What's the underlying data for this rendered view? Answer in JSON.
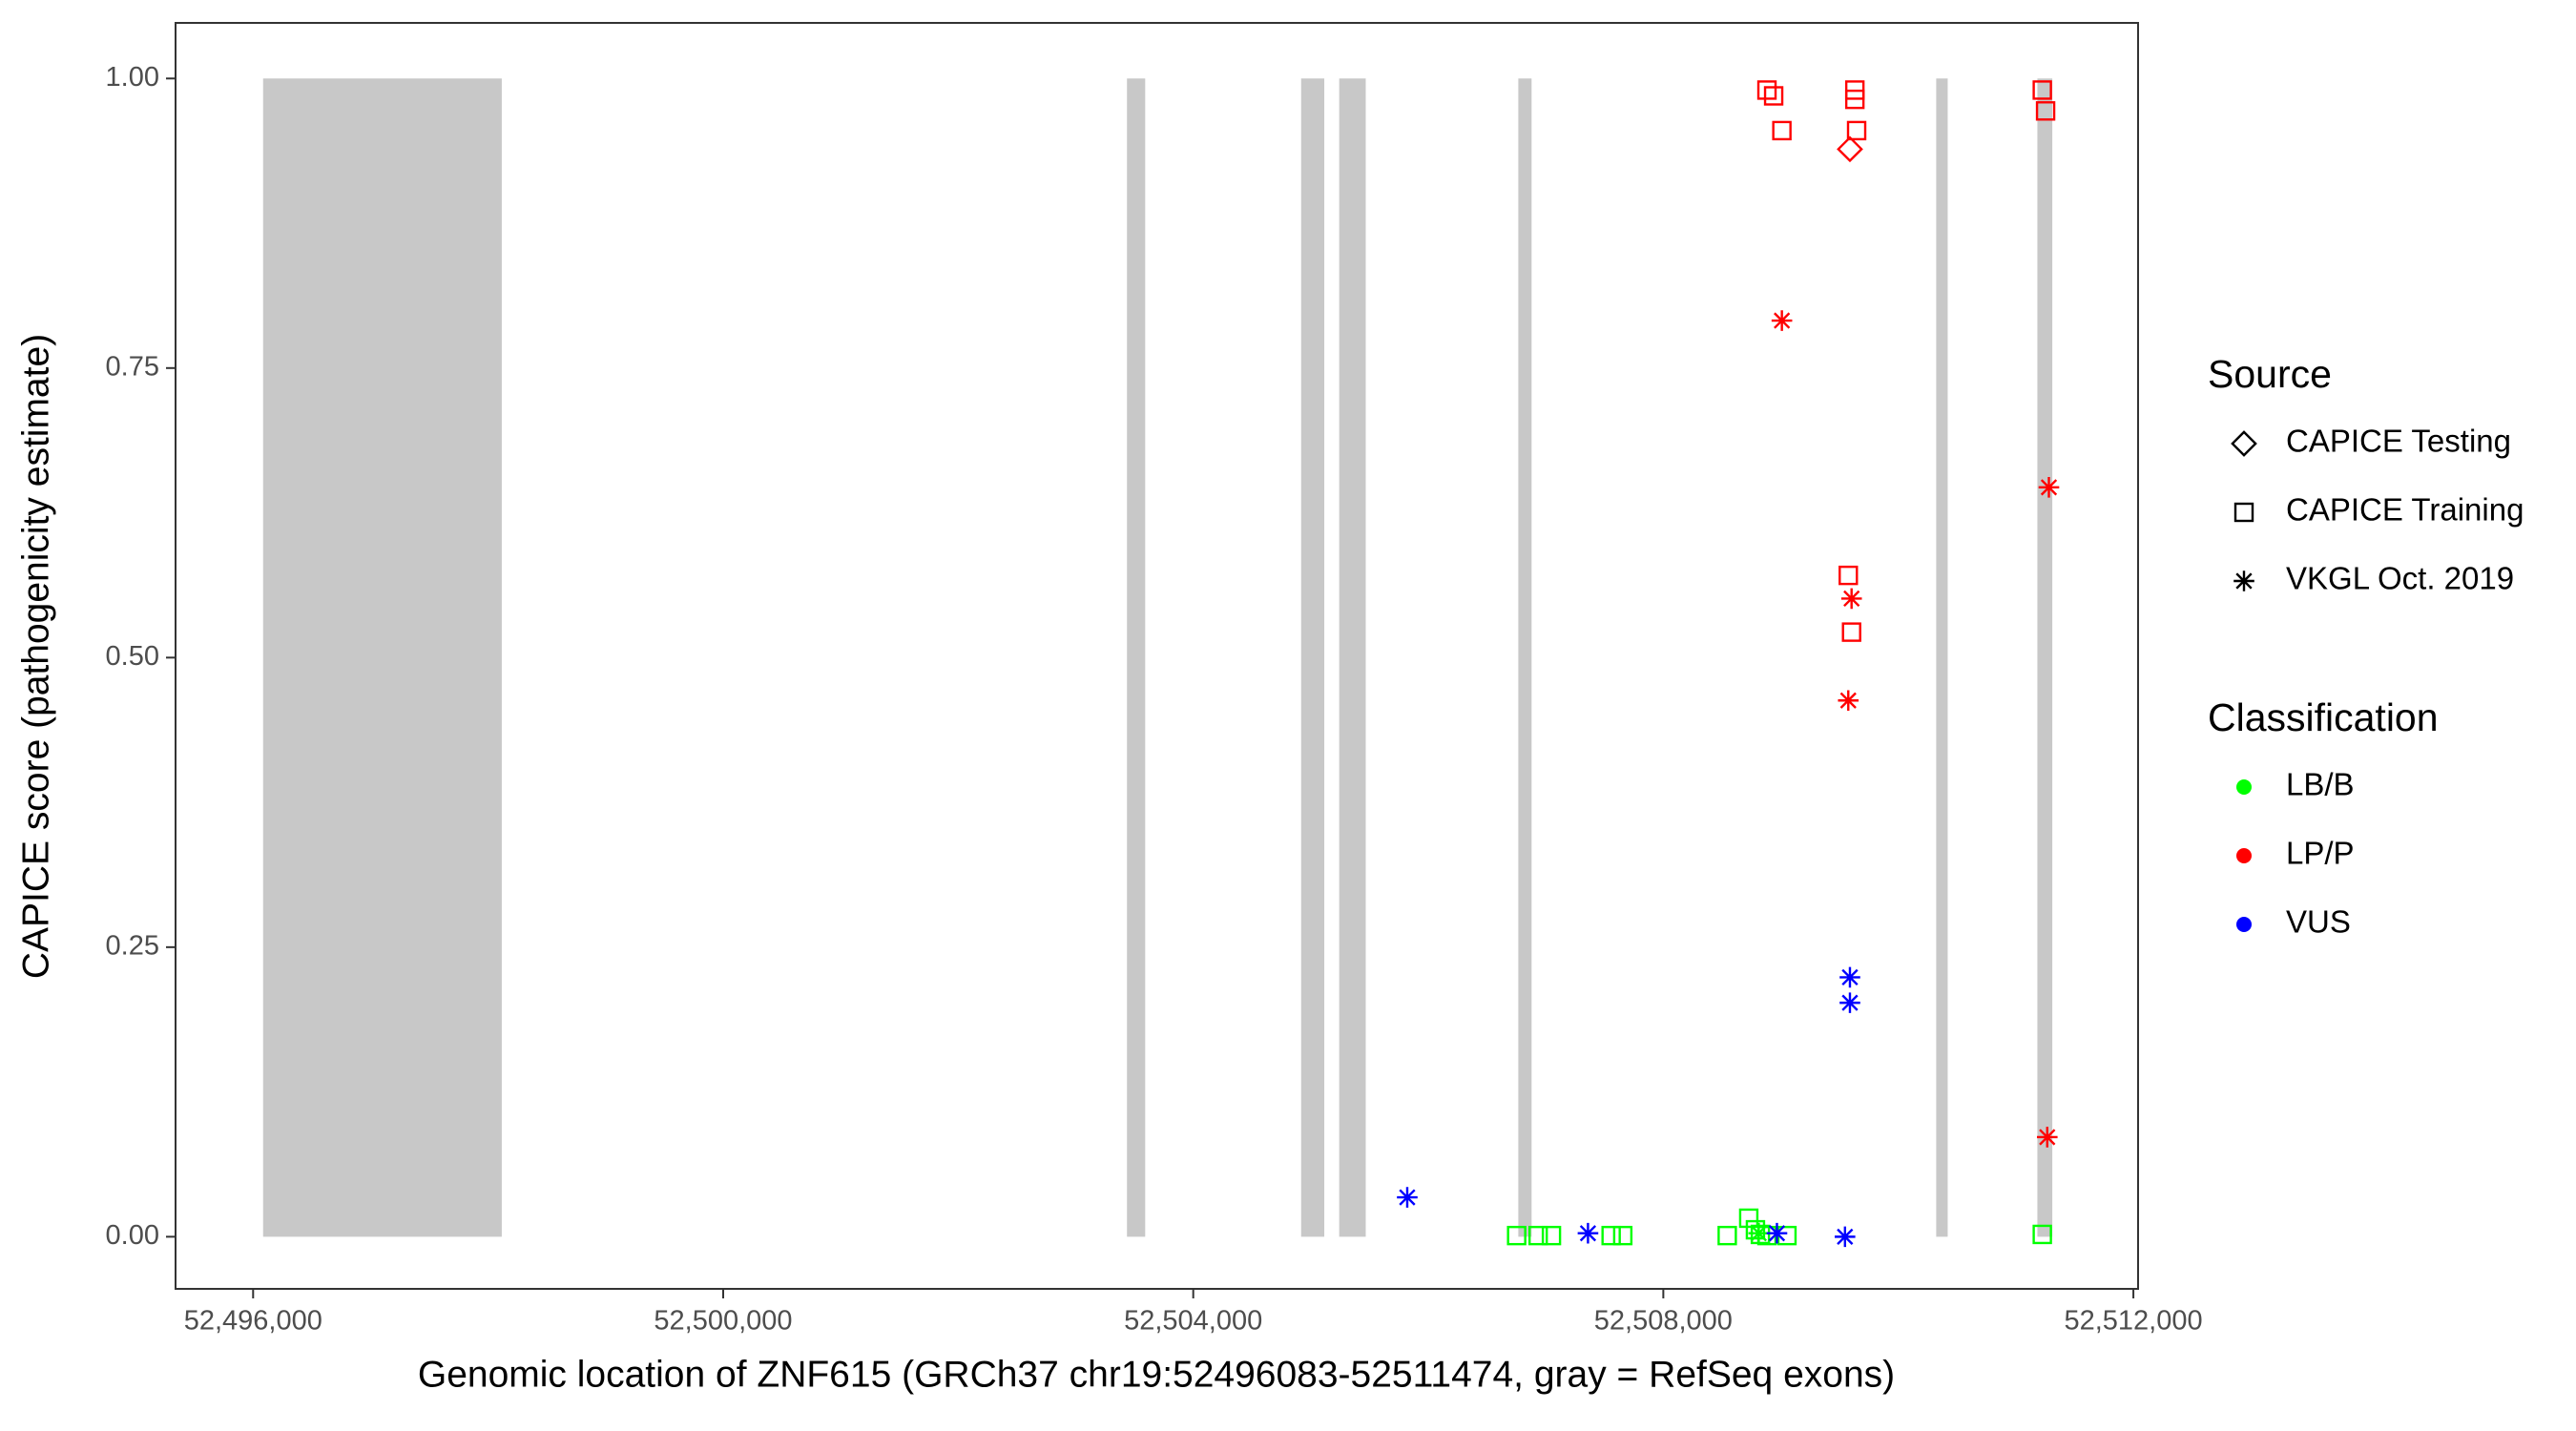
{
  "chart_data": {
    "type": "scatter",
    "x_label": "Genomic location of ZNF615 (GRCh37 chr19:52496083-52511474, gray = RefSeq exons)",
    "y_label": "CAPICE score (pathogenicity estimate)",
    "xlim": [
      52495340,
      52512040
    ],
    "ylim": [
      -0.045,
      1.048
    ],
    "xticks": [
      {
        "value": 52496000,
        "label": "52,496,000"
      },
      {
        "value": 52500000,
        "label": "52,500,000"
      },
      {
        "value": 52504000,
        "label": "52,504,000"
      },
      {
        "value": 52508000,
        "label": "52,508,000"
      },
      {
        "value": 52512000,
        "label": "52,512,000"
      }
    ],
    "yticks": [
      {
        "value": 0,
        "label": "0.00"
      },
      {
        "value": 0.25,
        "label": "0.25"
      },
      {
        "value": 0.5,
        "label": "0.50"
      },
      {
        "value": 0.75,
        "label": "0.75"
      },
      {
        "value": 1,
        "label": "1.00"
      }
    ],
    "grid": false,
    "exon_color": "#c8c8c8",
    "exon_y": [
      0,
      1
    ],
    "exons": [
      [
        52496085,
        52498116
      ],
      [
        52503436,
        52503591
      ],
      [
        52504918,
        52505115
      ],
      [
        52505242,
        52505468
      ],
      [
        52506766,
        52506879
      ],
      [
        52510322,
        52510420
      ],
      [
        52511183,
        52511310
      ]
    ],
    "legends": [
      {
        "title": "Source",
        "items": [
          {
            "name": "CAPICE Testing",
            "shape": "diamond"
          },
          {
            "name": "CAPICE Training",
            "shape": "square"
          },
          {
            "name": "VKGL Oct. 2019",
            "shape": "asterisk"
          }
        ]
      },
      {
        "title": "Classification",
        "items": [
          {
            "name": "LB/B",
            "color": "#00ff00"
          },
          {
            "name": "LP/P",
            "color": "#ff0000"
          },
          {
            "name": "VUS",
            "color": "#0000ff"
          }
        ]
      }
    ],
    "series": [
      {
        "source": 1,
        "classification": 1,
        "x": [
          52508882,
          52508939,
          52509009,
          52509630,
          52509630,
          52509645,
          52511225,
          52511253,
          52509574,
          52509602
        ],
        "values": [
          0.99,
          0.985,
          0.955,
          0.99,
          0.982,
          0.955,
          0.99,
          0.972,
          0.571,
          0.522
        ]
      },
      {
        "source": 0,
        "classification": 1,
        "x": [
          52509588
        ],
        "values": [
          0.939
        ]
      },
      {
        "source": 2,
        "classification": 1,
        "x": [
          52509009,
          52511281,
          52509602,
          52509574,
          52511267
        ],
        "values": [
          0.791,
          0.647,
          0.551,
          0.463,
          0.086
        ]
      },
      {
        "source": 1,
        "classification": 0,
        "x": [
          52506752,
          52506935,
          52507048,
          52507556,
          52507655,
          52508544,
          52508727,
          52508784,
          52508826,
          52508882,
          52509052,
          52511225
        ],
        "values": [
          0.001,
          0.001,
          0.001,
          0.001,
          0.001,
          0.001,
          0.016,
          0.006,
          0.002,
          0.001,
          0.001,
          0.002
        ]
      },
      {
        "source": 2,
        "classification": 0,
        "x": [
          52508812
        ],
        "values": [
          0.003
        ]
      },
      {
        "source": 2,
        "classification": 2,
        "x": [
          52505821,
          52507359,
          52508967,
          52509588,
          52509588,
          52509546
        ],
        "values": [
          0.034,
          0.003,
          0.003,
          0.224,
          0.202,
          0.0
        ]
      }
    ]
  }
}
